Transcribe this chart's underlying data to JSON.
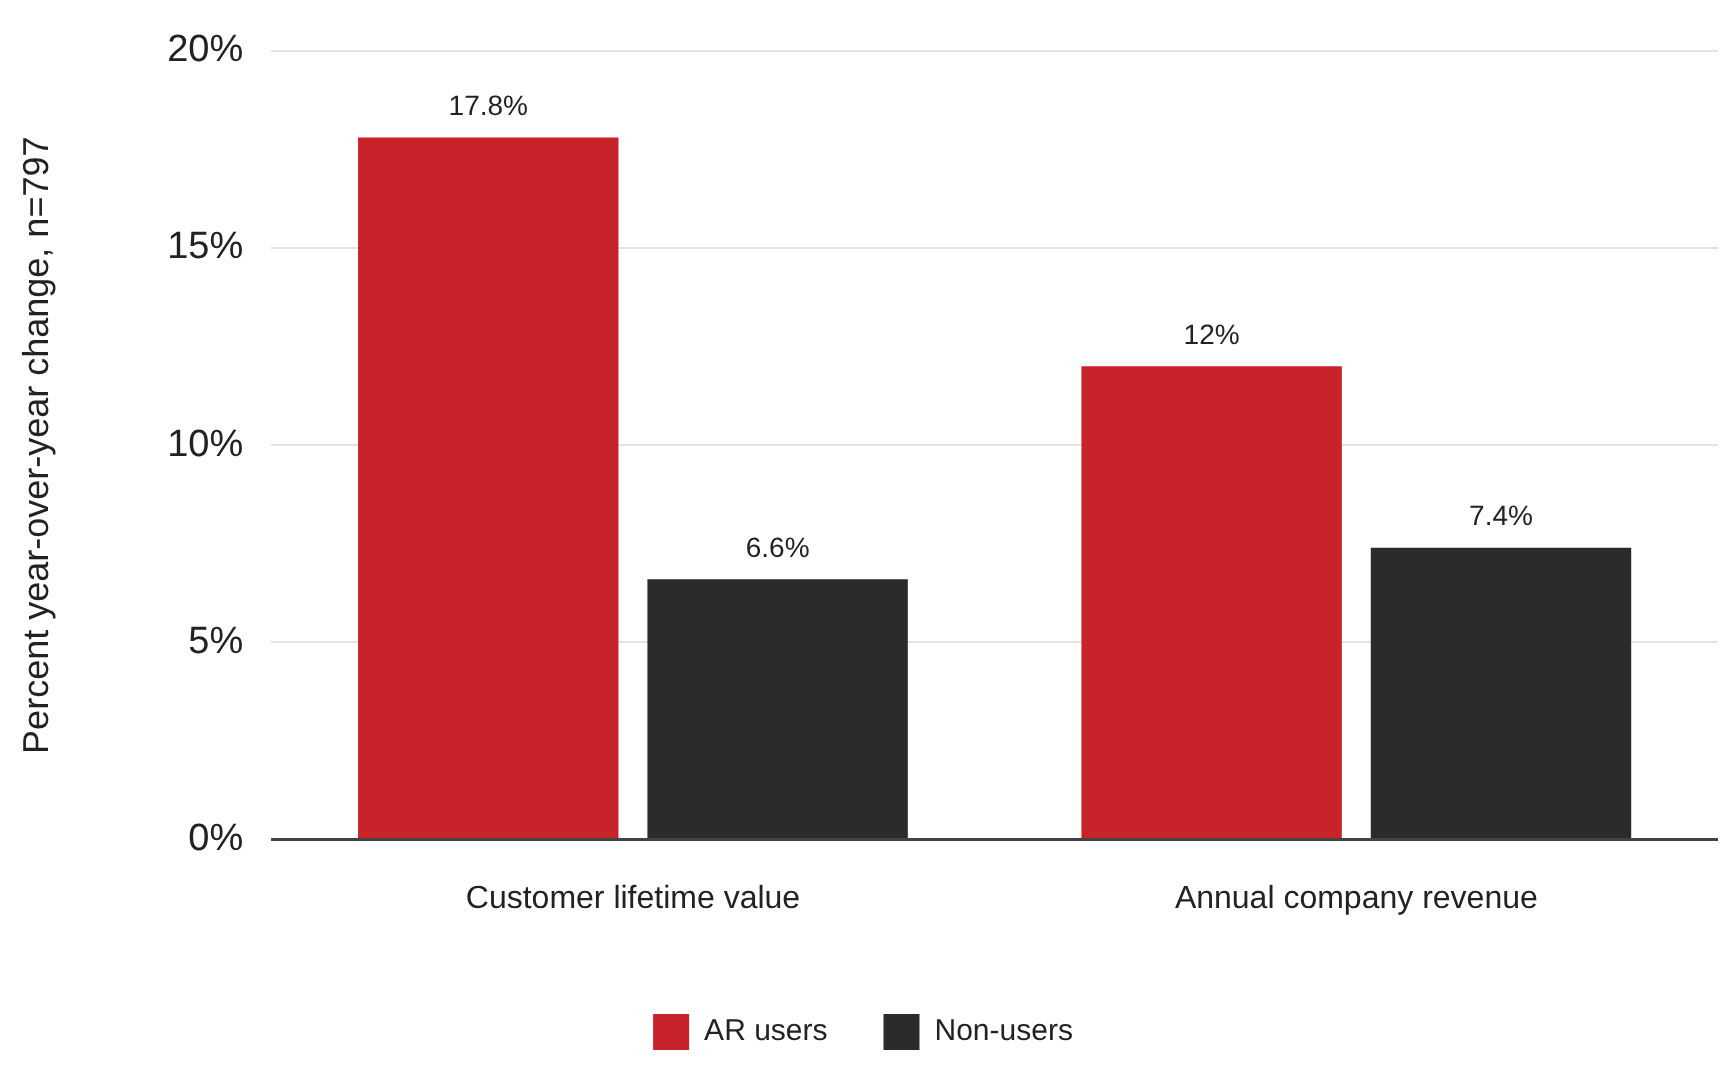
{
  "chart_data": {
    "type": "bar",
    "ylabel": "Percent year-over-year change, n=797",
    "categories": [
      "Customer lifetime value",
      "Annual company revenue"
    ],
    "series": [
      {
        "name": "AR users",
        "color": "#c8232b",
        "values": [
          17.8,
          12
        ],
        "value_labels": [
          "17.8%",
          "12%"
        ]
      },
      {
        "name": "Non-users",
        "color": "#2b2b2b",
        "values": [
          6.6,
          7.4
        ],
        "value_labels": [
          "6.6%",
          "7.4%"
        ]
      }
    ],
    "ylim": [
      0,
      20
    ],
    "yticks": [
      {
        "value": 0,
        "label": "0%"
      },
      {
        "value": 5,
        "label": "5%"
      },
      {
        "value": 10,
        "label": "10%"
      },
      {
        "value": 15,
        "label": "15%"
      },
      {
        "value": 20,
        "label": "20%"
      }
    ],
    "grid": "y",
    "legend": "bottom"
  }
}
